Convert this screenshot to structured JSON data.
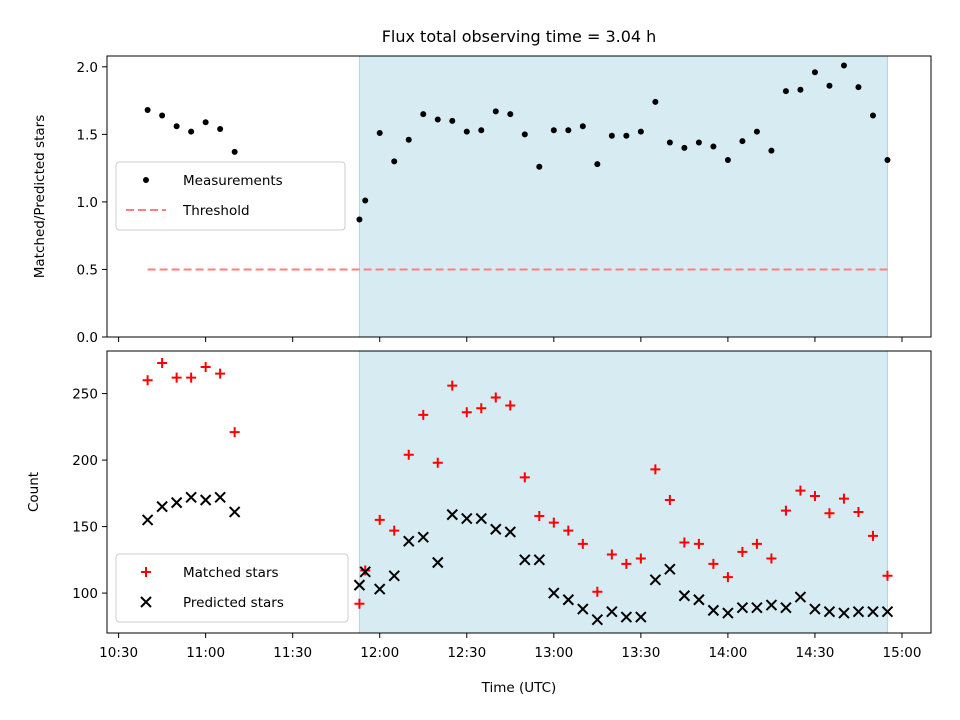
{
  "figure": {
    "title": "Flux total observing time = 3.04 h",
    "xlabel": "Time (UTC)"
  },
  "chart_data": [
    {
      "type": "scatter",
      "ylabel": "Matched/Predicted stars",
      "ylim": [
        0,
        2.08
      ],
      "yticks": [
        0.0,
        0.5,
        1.0,
        1.5,
        2.0
      ],
      "ytick_labels": [
        "0.0",
        "0.5",
        "1.0",
        "1.5",
        "2.0"
      ],
      "xlim": [
        "10:26",
        "15:10"
      ],
      "xticks": [
        "10:30",
        "11:00",
        "11:30",
        "12:00",
        "12:30",
        "13:00",
        "13:30",
        "14:00",
        "14:30",
        "15:00"
      ],
      "xtick_labels": [],
      "shaded_interval": {
        "from": "11:53",
        "to": "14:55",
        "color": "#add8e6"
      },
      "legend": "center-left",
      "series": [
        {
          "name": "Measurements",
          "marker": "dot",
          "color": "#000000",
          "x": [
            "10:40",
            "10:45",
            "10:50",
            "10:55",
            "11:00",
            "11:05",
            "11:10",
            "11:53",
            "11:55",
            "12:00",
            "12:05",
            "12:10",
            "12:15",
            "12:20",
            "12:25",
            "12:30",
            "12:35",
            "12:40",
            "12:45",
            "12:50",
            "12:55",
            "13:00",
            "13:05",
            "13:10",
            "13:15",
            "13:20",
            "13:25",
            "13:30",
            "13:35",
            "13:40",
            "13:45",
            "13:50",
            "13:55",
            "14:00",
            "14:05",
            "14:10",
            "14:15",
            "14:20",
            "14:25",
            "14:30",
            "14:35",
            "14:40",
            "14:45",
            "14:50",
            "14:55"
          ],
          "y": [
            1.68,
            1.64,
            1.56,
            1.52,
            1.59,
            1.54,
            1.37,
            0.87,
            1.01,
            1.51,
            1.3,
            1.46,
            1.65,
            1.61,
            1.6,
            1.52,
            1.53,
            1.67,
            1.65,
            1.5,
            1.26,
            1.53,
            1.53,
            1.56,
            1.28,
            1.49,
            1.49,
            1.52,
            1.74,
            1.44,
            1.4,
            1.44,
            1.41,
            1.31,
            1.45,
            1.52,
            1.38,
            1.82,
            1.83,
            1.96,
            1.86,
            2.01,
            1.85,
            1.64,
            1.31
          ]
        },
        {
          "name": "Threshold",
          "marker": "dashed-line",
          "color": "#ff7f7f",
          "x": [
            "10:40",
            "14:55"
          ],
          "y": [
            0.5,
            0.5
          ]
        }
      ]
    },
    {
      "type": "scatter",
      "ylabel": "Count",
      "ylim": [
        70,
        282
      ],
      "yticks": [
        100,
        150,
        200,
        250
      ],
      "ytick_labels": [
        "100",
        "150",
        "200",
        "250"
      ],
      "xlim": [
        "10:26",
        "15:10"
      ],
      "xticks": [
        "10:30",
        "11:00",
        "11:30",
        "12:00",
        "12:30",
        "13:00",
        "13:30",
        "14:00",
        "14:30",
        "15:00"
      ],
      "xtick_labels": [
        "10:30",
        "11:00",
        "11:30",
        "12:00",
        "12:30",
        "13:00",
        "13:30",
        "14:00",
        "14:30",
        "15:00"
      ],
      "shaded_interval": {
        "from": "11:53",
        "to": "14:55",
        "color": "#add8e6"
      },
      "legend": "bottom-left",
      "series": [
        {
          "name": "Matched stars",
          "marker": "plus",
          "color": "#ff0000",
          "x": [
            "10:40",
            "10:45",
            "10:50",
            "10:55",
            "11:00",
            "11:05",
            "11:10",
            "11:53",
            "11:55",
            "12:00",
            "12:05",
            "12:10",
            "12:15",
            "12:20",
            "12:25",
            "12:30",
            "12:35",
            "12:40",
            "12:45",
            "12:50",
            "12:55",
            "13:00",
            "13:05",
            "13:10",
            "13:15",
            "13:20",
            "13:25",
            "13:30",
            "13:35",
            "13:40",
            "13:45",
            "13:50",
            "13:55",
            "14:00",
            "14:05",
            "14:10",
            "14:15",
            "14:20",
            "14:25",
            "14:30",
            "14:35",
            "14:40",
            "14:45",
            "14:50",
            "14:55"
          ],
          "y": [
            260,
            273,
            262,
            262,
            270,
            265,
            221,
            92,
            117,
            155,
            147,
            204,
            234,
            198,
            256,
            236,
            239,
            247,
            241,
            187,
            158,
            153,
            147,
            137,
            101,
            129,
            122,
            126,
            193,
            170,
            138,
            137,
            122,
            112,
            131,
            137,
            126,
            162,
            177,
            173,
            160,
            171,
            161,
            143,
            113
          ]
        },
        {
          "name": "Predicted stars",
          "marker": "x",
          "color": "#000000",
          "x": [
            "10:40",
            "10:45",
            "10:50",
            "10:55",
            "11:00",
            "11:05",
            "11:10",
            "11:53",
            "11:55",
            "12:00",
            "12:05",
            "12:10",
            "12:15",
            "12:20",
            "12:25",
            "12:30",
            "12:35",
            "12:40",
            "12:45",
            "12:50",
            "12:55",
            "13:00",
            "13:05",
            "13:10",
            "13:15",
            "13:20",
            "13:25",
            "13:30",
            "13:35",
            "13:40",
            "13:45",
            "13:50",
            "13:55",
            "14:00",
            "14:05",
            "14:10",
            "14:15",
            "14:20",
            "14:25",
            "14:30",
            "14:35",
            "14:40",
            "14:45",
            "14:50",
            "14:55"
          ],
          "y": [
            155,
            165,
            168,
            172,
            170,
            172,
            161,
            106,
            116,
            103,
            113,
            139,
            142,
            123,
            159,
            156,
            156,
            148,
            146,
            125,
            125,
            100,
            95,
            88,
            80,
            86,
            82,
            82,
            110,
            118,
            98,
            95,
            87,
            85,
            89,
            89,
            91,
            89,
            97,
            88,
            86,
            85,
            86,
            86,
            86
          ]
        }
      ]
    }
  ]
}
